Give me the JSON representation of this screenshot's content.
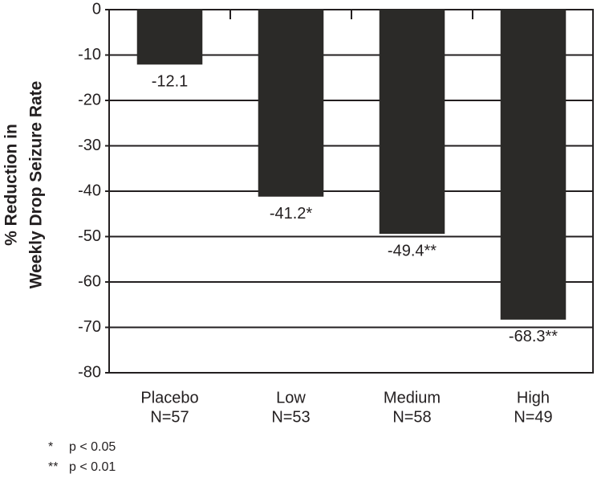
{
  "chart_data": {
    "type": "bar",
    "ylabel": [
      "% Reduction in",
      "Weekly Drop Seizure Rate"
    ],
    "categories": [
      "Placebo",
      "Low",
      "Medium",
      "High"
    ],
    "category_sublabels": [
      "N=57",
      "N=53",
      "N=58",
      "N=49"
    ],
    "values": [
      -12.1,
      -41.2,
      -49.4,
      -68.3
    ],
    "value_labels": [
      "-12.1",
      "-41.2*",
      "-49.4**",
      "-68.3**"
    ],
    "color": "#2b2a28",
    "ylim": [
      -80,
      0
    ],
    "yticks": [
      0,
      -10,
      -20,
      -30,
      -40,
      -50,
      -60,
      -70,
      -80
    ],
    "grid": true,
    "footnotes": [
      {
        "symbol": "*",
        "text": "p < 0.05"
      },
      {
        "symbol": "**",
        "text": "p < 0.01"
      }
    ]
  }
}
